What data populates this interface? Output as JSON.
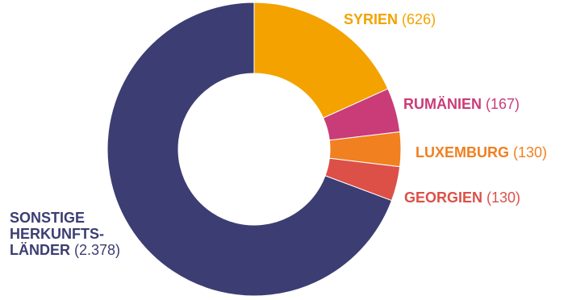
{
  "chart_data": {
    "type": "pie",
    "donut": true,
    "title": "",
    "slices": [
      {
        "label": "SYRIEN",
        "value_label": "(626)",
        "value": 626,
        "color": "#f3a200"
      },
      {
        "label": "RUMÄNIEN",
        "value_label": "(167)",
        "value": 167,
        "color": "#c93c78"
      },
      {
        "label": "LUXEMBURG",
        "value_label": "(130)",
        "value": 130,
        "color": "#f08020"
      },
      {
        "label": "GEORGIEN",
        "value_label": "(130)",
        "value": 130,
        "color": "#dc5048"
      },
      {
        "label_lines": [
          "SONSTIGE",
          "HERKUNFTS-",
          "LÄNDER"
        ],
        "value_label": "(2.378)",
        "value": 2378,
        "color": "#3c3d72"
      }
    ]
  }
}
